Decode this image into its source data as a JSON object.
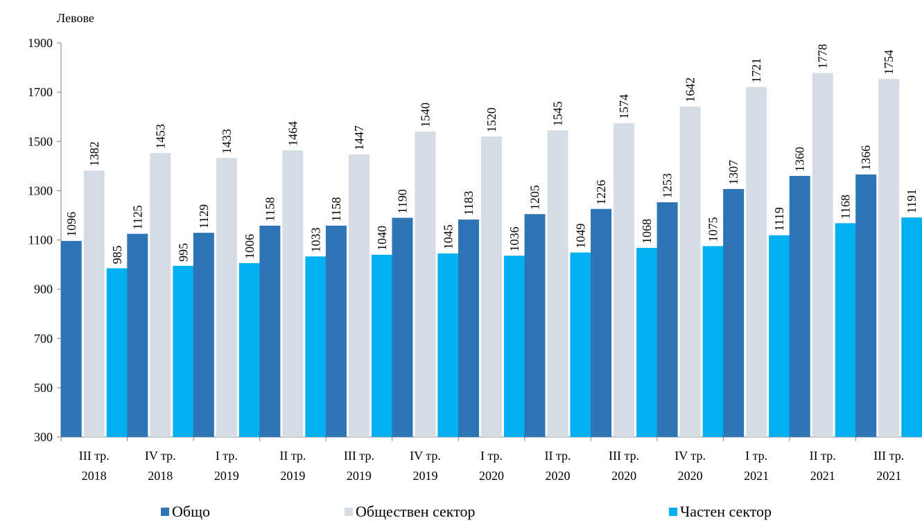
{
  "chart_data": {
    "type": "bar",
    "title": "",
    "xlabel": "",
    "ylabel": "Левове",
    "ylim": [
      300,
      1900
    ],
    "yticks": [
      300,
      500,
      700,
      900,
      1100,
      1300,
      1500,
      1700,
      1900
    ],
    "grid": false,
    "legend_position": "bottom",
    "categories": [
      [
        "III тр.",
        "2018"
      ],
      [
        "IV тр.",
        "2018"
      ],
      [
        "I тр.",
        "2019"
      ],
      [
        "II тр.",
        "2019"
      ],
      [
        "III тр.",
        "2019"
      ],
      [
        "IV тр.",
        "2019"
      ],
      [
        "I тр.",
        "2020"
      ],
      [
        "II тр.",
        "2020"
      ],
      [
        "III тр.",
        "2020"
      ],
      [
        "IV тр.",
        "2020"
      ],
      [
        "I тр.",
        "2021"
      ],
      [
        "II тр.",
        "2021"
      ],
      [
        "III тр.",
        "2021"
      ]
    ],
    "series": [
      {
        "name": "Общо",
        "color": "#2e75b6",
        "values": [
          1096,
          1125,
          1129,
          1158,
          1158,
          1190,
          1183,
          1205,
          1226,
          1253,
          1307,
          1360,
          1366
        ]
      },
      {
        "name": "Обществен сектор",
        "color": "#d6dce5",
        "values": [
          1382,
          1453,
          1433,
          1464,
          1447,
          1540,
          1520,
          1545,
          1574,
          1642,
          1721,
          1778,
          1754
        ]
      },
      {
        "name": "Частен сектор",
        "color": "#00b0f0",
        "values": [
          985,
          995,
          1006,
          1033,
          1040,
          1045,
          1036,
          1049,
          1068,
          1075,
          1119,
          1168,
          1191
        ]
      }
    ]
  }
}
